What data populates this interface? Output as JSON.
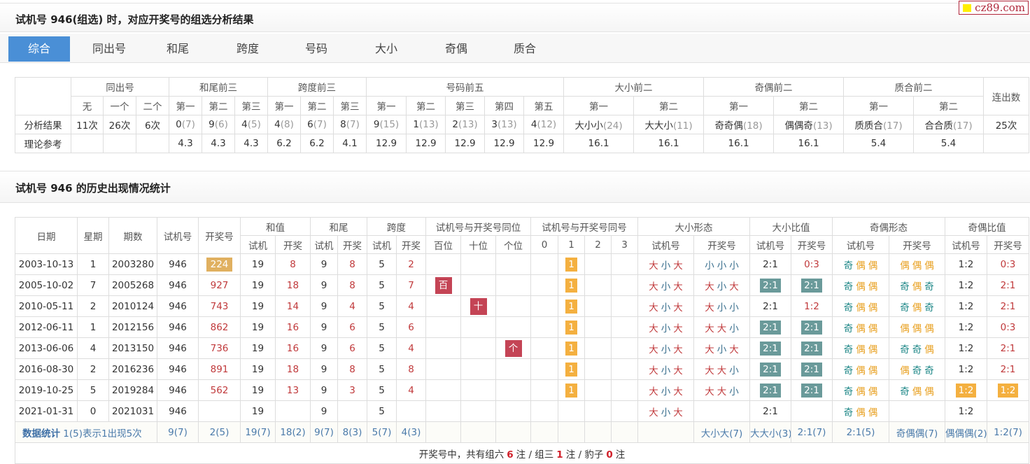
{
  "logo": "cz89.com",
  "section1_title": "试机号 946(组选) 时，对应开奖号的组选分析结果",
  "tabs": [
    "综合",
    "同出号",
    "和尾",
    "跨度",
    "号码",
    "大小",
    "奇偶",
    "质合"
  ],
  "active_tab": 0,
  "summary": {
    "groups": [
      "同出号",
      "和尾前三",
      "跨度前三",
      "号码前五",
      "大小前二",
      "奇偶前二",
      "质合前二",
      "连出数"
    ],
    "subheaders": [
      "无",
      "一个",
      "二个",
      "第一",
      "第二",
      "第三",
      "第一",
      "第二",
      "第三",
      "第一",
      "第二",
      "第三",
      "第四",
      "第五",
      "第一",
      "第二",
      "第一",
      "第二",
      "第一",
      "第二"
    ],
    "result_label": "分析结果",
    "results": [
      [
        "11次",
        ""
      ],
      [
        "26次",
        ""
      ],
      [
        "6次",
        ""
      ],
      [
        "0",
        "7"
      ],
      [
        "9",
        "6"
      ],
      [
        "4",
        "5"
      ],
      [
        "4",
        "8"
      ],
      [
        "6",
        "7"
      ],
      [
        "8",
        "7"
      ],
      [
        "9",
        "15"
      ],
      [
        "1",
        "13"
      ],
      [
        "2",
        "13"
      ],
      [
        "3",
        "13"
      ],
      [
        "4",
        "12"
      ],
      [
        "大小小",
        "24"
      ],
      [
        "大大小",
        "11"
      ],
      [
        "奇奇偶",
        "18"
      ],
      [
        "偶偶奇",
        "13"
      ],
      [
        "质质合",
        "17"
      ],
      [
        "合合质",
        "17"
      ],
      [
        "25次",
        ""
      ]
    ],
    "theory_label": "理论参考",
    "theory": [
      "",
      "",
      "",
      "4.3",
      "4.3",
      "4.3",
      "6.2",
      "6.2",
      "4.1",
      "12.9",
      "12.9",
      "12.9",
      "12.9",
      "12.9",
      "16.1",
      "16.1",
      "16.1",
      "16.1",
      "5.4",
      "5.4",
      ""
    ]
  },
  "section2_title": "试机号 946 的历史出现情况统计",
  "history": {
    "headers": {
      "date": "日期",
      "weekday": "星期",
      "issue": "期数",
      "test": "试机号",
      "draw": "开奖号",
      "sum": "和值",
      "tail": "和尾",
      "span": "跨度",
      "samepos": "试机号与开奖号同位",
      "samenum": "试机号与开奖号同号",
      "bs_shape": "大小形态",
      "bs_ratio": "大小比值",
      "oe_shape": "奇偶形态",
      "oe_ratio": "奇偶比值"
    },
    "sub": {
      "t": "试机",
      "d": "开奖",
      "pos": [
        "百位",
        "十位",
        "个位"
      ],
      "num": [
        "0",
        "1",
        "2",
        "3"
      ],
      "tn": "试机号",
      "dn": "开奖号"
    },
    "rows": [
      {
        "date": "2003-10-13",
        "wd": "1",
        "issue": "2003280",
        "test": "946",
        "draw": "224",
        "draw_hl": true,
        "sum": [
          "19",
          "8"
        ],
        "tail": [
          "9",
          "8"
        ],
        "span": [
          "5",
          "2"
        ],
        "pos": [
          null,
          null,
          null
        ],
        "same": 1,
        "bs": [
          "大小大",
          "小小小"
        ],
        "bsr": [
          "2:1",
          "0:3"
        ],
        "bsr_hl": false,
        "bsr_red": true,
        "oe": [
          "奇偶偶",
          "偶偶偶"
        ],
        "oer": [
          "1:2",
          "0:3"
        ],
        "oer_hl": false
      },
      {
        "date": "2005-10-02",
        "wd": "7",
        "issue": "2005268",
        "test": "946",
        "draw": "927",
        "sum": [
          "19",
          "18"
        ],
        "tail": [
          "9",
          "8"
        ],
        "span": [
          "5",
          "7"
        ],
        "pos": [
          "百",
          null,
          null
        ],
        "same": 1,
        "bs": [
          "大小大",
          "大小大"
        ],
        "bsr": [
          "2:1",
          "2:1"
        ],
        "bsr_hl": true,
        "oe": [
          "奇偶偶",
          "奇偶奇"
        ],
        "oer": [
          "1:2",
          "2:1"
        ],
        "oer_hl": false
      },
      {
        "date": "2010-05-11",
        "wd": "2",
        "issue": "2010124",
        "test": "946",
        "draw": "743",
        "sum": [
          "19",
          "14"
        ],
        "tail": [
          "9",
          "4"
        ],
        "span": [
          "5",
          "4"
        ],
        "pos": [
          null,
          "十",
          null
        ],
        "same": 1,
        "bs": [
          "大小大",
          "大小小"
        ],
        "bsr": [
          "2:1",
          "1:2"
        ],
        "bsr_hl": false,
        "bsr_red": true,
        "oe": [
          "奇偶偶",
          "奇偶奇"
        ],
        "oer": [
          "1:2",
          "2:1"
        ],
        "oer_hl": false
      },
      {
        "date": "2012-06-11",
        "wd": "1",
        "issue": "2012156",
        "test": "946",
        "draw": "862",
        "sum": [
          "19",
          "16"
        ],
        "tail": [
          "9",
          "6"
        ],
        "span": [
          "5",
          "6"
        ],
        "pos": [
          null,
          null,
          null
        ],
        "same": 1,
        "bs": [
          "大小大",
          "大大小"
        ],
        "bsr": [
          "2:1",
          "2:1"
        ],
        "bsr_hl": true,
        "oe": [
          "奇偶偶",
          "偶偶偶"
        ],
        "oer": [
          "1:2",
          "0:3"
        ],
        "oer_hl": false
      },
      {
        "date": "2013-06-06",
        "wd": "4",
        "issue": "2013150",
        "test": "946",
        "draw": "736",
        "sum": [
          "19",
          "16"
        ],
        "tail": [
          "9",
          "6"
        ],
        "span": [
          "5",
          "4"
        ],
        "pos": [
          null,
          null,
          "个"
        ],
        "same": 1,
        "bs": [
          "大小大",
          "大小大"
        ],
        "bsr": [
          "2:1",
          "2:1"
        ],
        "bsr_hl": true,
        "oe": [
          "奇偶偶",
          "奇奇偶"
        ],
        "oer": [
          "1:2",
          "2:1"
        ],
        "oer_hl": false
      },
      {
        "date": "2016-08-30",
        "wd": "2",
        "issue": "2016236",
        "test": "946",
        "draw": "891",
        "sum": [
          "19",
          "18"
        ],
        "tail": [
          "9",
          "8"
        ],
        "span": [
          "5",
          "8"
        ],
        "pos": [
          null,
          null,
          null
        ],
        "same": 1,
        "bs": [
          "大小大",
          "大大小"
        ],
        "bsr": [
          "2:1",
          "2:1"
        ],
        "bsr_hl": true,
        "oe": [
          "奇偶偶",
          "偶奇奇"
        ],
        "oer": [
          "1:2",
          "2:1"
        ],
        "oer_hl": false
      },
      {
        "date": "2019-10-25",
        "wd": "5",
        "issue": "2019284",
        "test": "946",
        "draw": "562",
        "sum": [
          "19",
          "13"
        ],
        "tail": [
          "9",
          "3"
        ],
        "span": [
          "5",
          "4"
        ],
        "pos": [
          null,
          null,
          null
        ],
        "same": 1,
        "bs": [
          "大小大",
          "大大小"
        ],
        "bsr": [
          "2:1",
          "2:1"
        ],
        "bsr_hl": true,
        "oe": [
          "奇偶偶",
          "奇偶偶"
        ],
        "oer": [
          "1:2",
          "1:2"
        ],
        "oer_hl": true
      },
      {
        "date": "2021-01-31",
        "wd": "0",
        "issue": "2021031",
        "test": "946",
        "draw": "",
        "sum": [
          "19",
          ""
        ],
        "tail": [
          "9",
          ""
        ],
        "span": [
          "5",
          ""
        ],
        "pos": [
          null,
          null,
          null
        ],
        "same": null,
        "bs": [
          "大小大",
          ""
        ],
        "bsr": [
          "2:1",
          ""
        ],
        "bsr_hl": false,
        "oe": [
          "奇偶偶",
          ""
        ],
        "oer": [
          "1:2",
          ""
        ],
        "oer_hl": false
      }
    ],
    "stats": {
      "label": "数据统计",
      "note": "1(5)表示1出现5次",
      "values": [
        "9(7)",
        "2(5)",
        "19(7)",
        "18(2)",
        "9(7)",
        "8(3)",
        "5(7)",
        "4(3)",
        "",
        "",
        "",
        "",
        "",
        "",
        "",
        "",
        "大小大(7)",
        "大大小(3)",
        "2:1(7)",
        "2:1(5)",
        "奇偶偶(7)",
        "偶偶偶(2)",
        "1:2(7)",
        "2:1(4)"
      ]
    },
    "footer": {
      "prefix": "开奖号中，共有组六",
      "z6": "6",
      "z3_label": "注 / 组三",
      "z3": "1",
      "bz_label": "注 / 豹子",
      "bz": "0",
      "suffix": "注"
    }
  },
  "colors": {
    "accent": "#4a8fd6",
    "red": "#c0393b",
    "blue": "#3a6f8e",
    "teal": "#1a8585",
    "orange": "#e8a020",
    "highlight_gray": "#6a9a9a",
    "highlight_orange": "#f4b040"
  }
}
